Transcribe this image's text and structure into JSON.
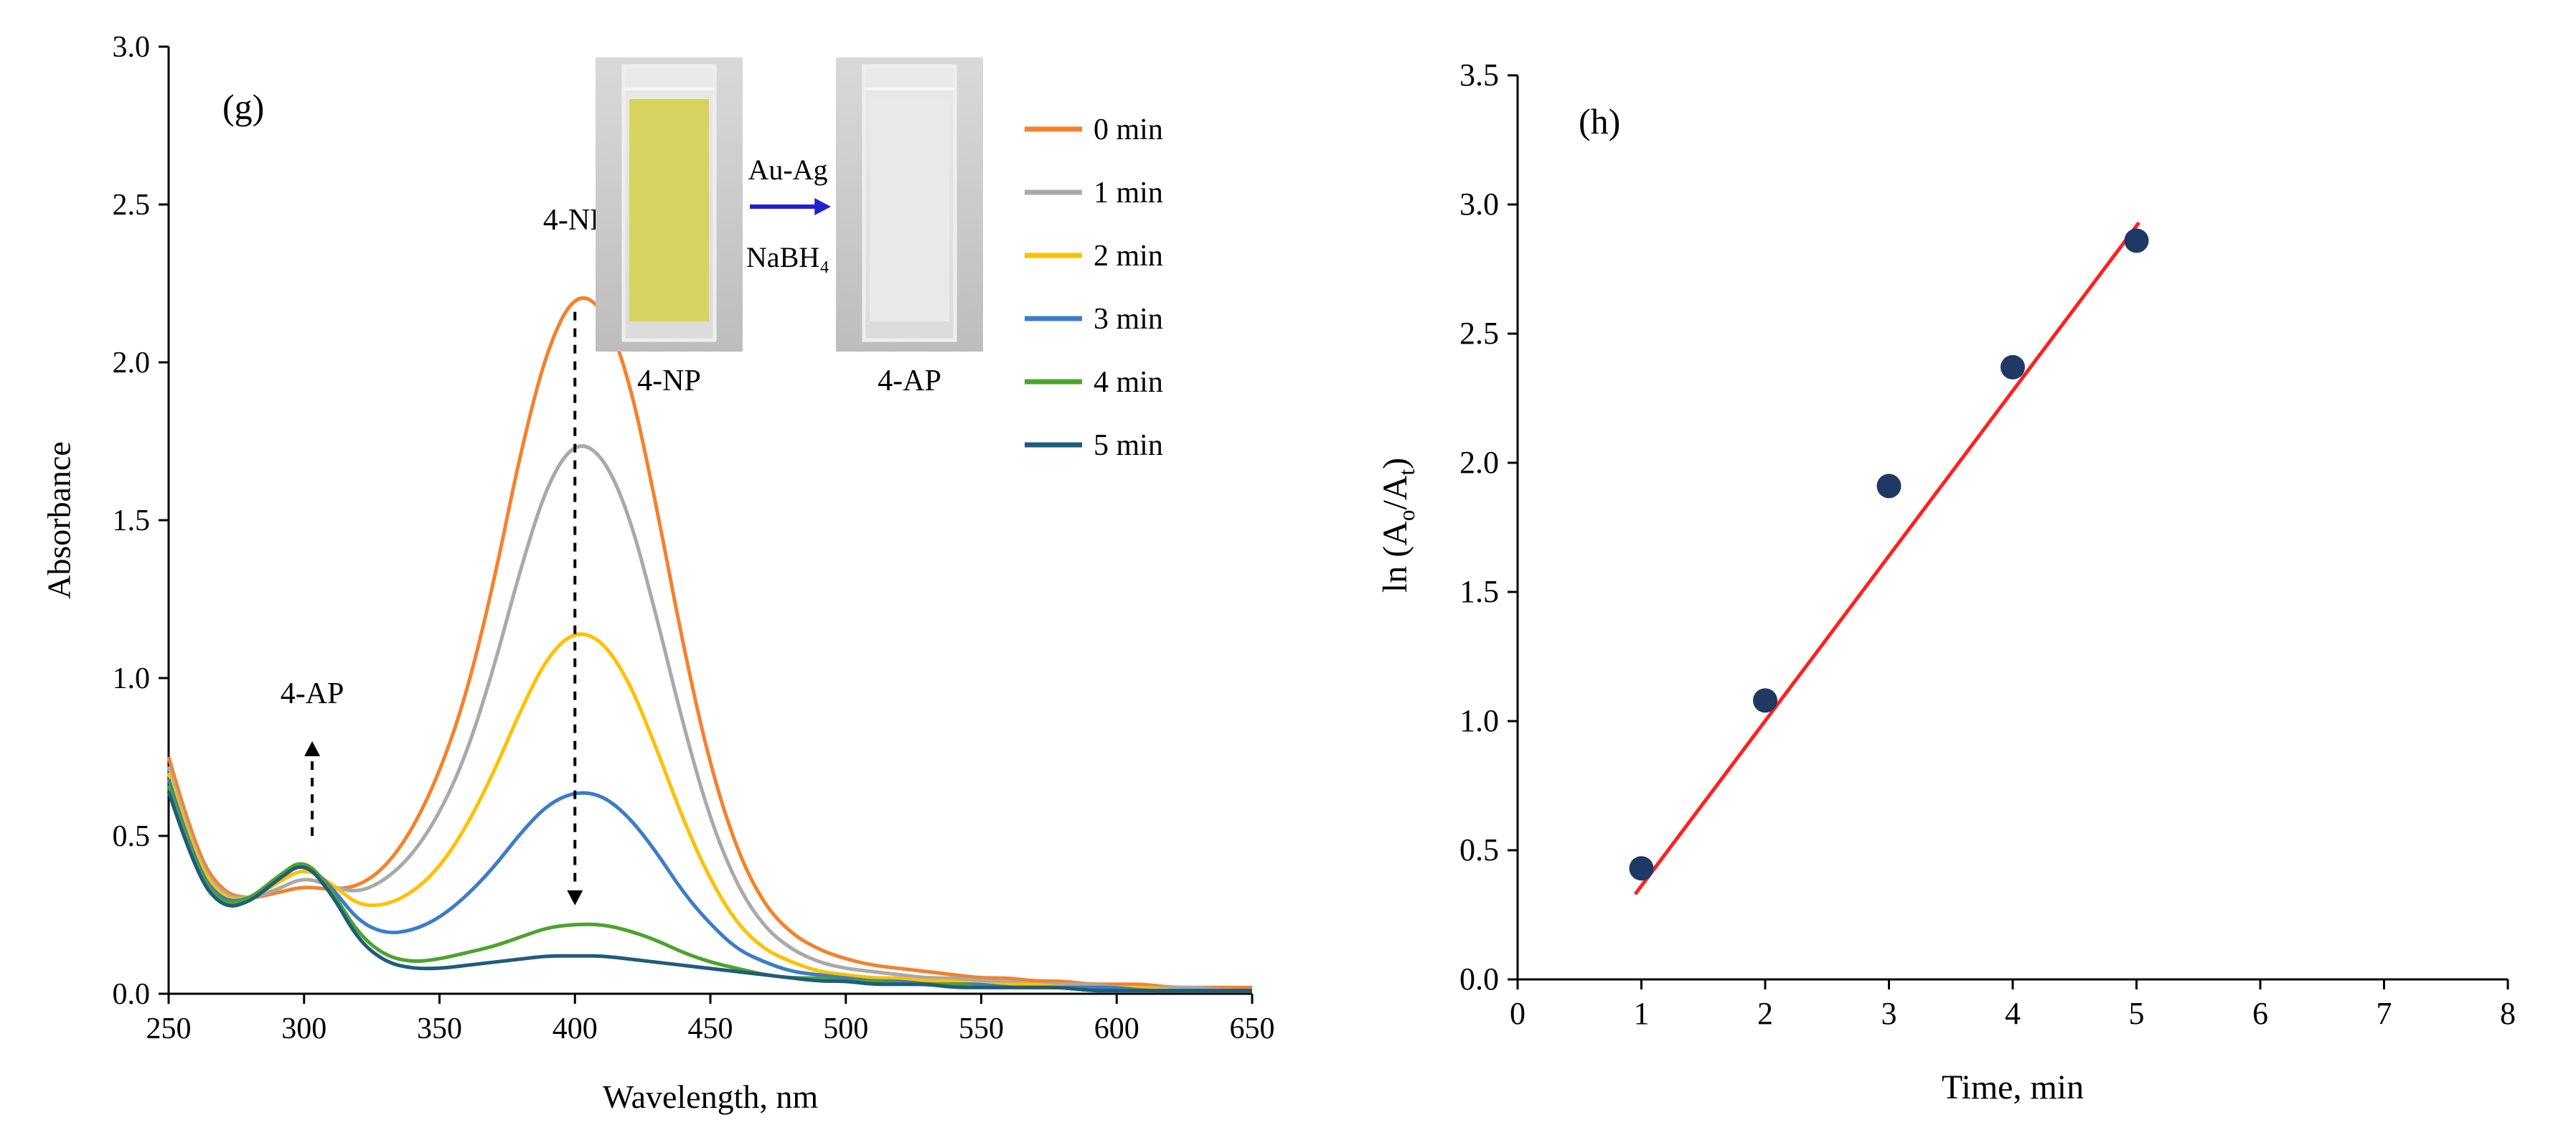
{
  "chart_data": [
    {
      "type": "line",
      "panel_label": "(g)",
      "xlabel": "Wavelength, nm",
      "ylabel": "Absorbance",
      "xlim": [
        250,
        650
      ],
      "ylim": [
        0,
        3.0
      ],
      "xtick_step": 50,
      "ytick_step": 0.5,
      "legend_position": "right-top",
      "x_wavelengths_nm": [
        250,
        260,
        270,
        280,
        290,
        300,
        310,
        320,
        330,
        340,
        350,
        360,
        370,
        380,
        390,
        400,
        410,
        420,
        430,
        440,
        450,
        460,
        470,
        480,
        490,
        500,
        510,
        520,
        530,
        540,
        550,
        560,
        570,
        580,
        590,
        600,
        610,
        620,
        630,
        640,
        650
      ],
      "series": [
        {
          "name": "0 min",
          "color": "#F4822C",
          "values": [
            0.75,
            0.45,
            0.32,
            0.3,
            0.32,
            0.34,
            0.33,
            0.34,
            0.4,
            0.52,
            0.7,
            0.95,
            1.3,
            1.72,
            2.05,
            2.22,
            2.18,
            1.95,
            1.55,
            1.1,
            0.72,
            0.45,
            0.28,
            0.19,
            0.14,
            0.11,
            0.09,
            0.08,
            0.07,
            0.06,
            0.05,
            0.05,
            0.04,
            0.04,
            0.03,
            0.03,
            0.03,
            0.02,
            0.02,
            0.02,
            0.02
          ]
        },
        {
          "name": "1 min",
          "color": "#A9A9A9",
          "values": [
            0.72,
            0.43,
            0.31,
            0.3,
            0.33,
            0.37,
            0.34,
            0.32,
            0.36,
            0.44,
            0.57,
            0.76,
            1.03,
            1.35,
            1.62,
            1.75,
            1.71,
            1.52,
            1.2,
            0.85,
            0.55,
            0.34,
            0.21,
            0.14,
            0.1,
            0.08,
            0.07,
            0.06,
            0.05,
            0.05,
            0.04,
            0.04,
            0.03,
            0.03,
            0.03,
            0.02,
            0.02,
            0.02,
            0.02,
            0.01,
            0.01
          ]
        },
        {
          "name": "2 min",
          "color": "#FFC000",
          "values": [
            0.7,
            0.42,
            0.3,
            0.3,
            0.35,
            0.4,
            0.35,
            0.28,
            0.28,
            0.32,
            0.4,
            0.53,
            0.7,
            0.9,
            1.07,
            1.15,
            1.12,
            0.99,
            0.78,
            0.55,
            0.36,
            0.22,
            0.14,
            0.1,
            0.07,
            0.06,
            0.05,
            0.05,
            0.04,
            0.04,
            0.03,
            0.03,
            0.03,
            0.02,
            0.02,
            0.02,
            0.02,
            0.01,
            0.01,
            0.01,
            0.01
          ]
        },
        {
          "name": "3 min",
          "color": "#3B7DC8",
          "values": [
            0.68,
            0.4,
            0.29,
            0.3,
            0.36,
            0.42,
            0.34,
            0.23,
            0.19,
            0.2,
            0.24,
            0.31,
            0.4,
            0.51,
            0.6,
            0.64,
            0.63,
            0.56,
            0.45,
            0.32,
            0.22,
            0.14,
            0.1,
            0.07,
            0.06,
            0.05,
            0.04,
            0.04,
            0.03,
            0.03,
            0.03,
            0.02,
            0.02,
            0.02,
            0.02,
            0.02,
            0.01,
            0.01,
            0.01,
            0.01,
            0.01
          ]
        },
        {
          "name": "4 min",
          "color": "#4CA32F",
          "values": [
            0.66,
            0.39,
            0.28,
            0.3,
            0.37,
            0.43,
            0.33,
            0.19,
            0.12,
            0.1,
            0.11,
            0.13,
            0.15,
            0.18,
            0.21,
            0.22,
            0.22,
            0.2,
            0.17,
            0.13,
            0.1,
            0.08,
            0.06,
            0.05,
            0.05,
            0.04,
            0.04,
            0.03,
            0.03,
            0.03,
            0.02,
            0.02,
            0.02,
            0.02,
            0.01,
            0.01,
            0.01,
            0.01,
            0.01,
            0.01,
            0.01
          ]
        },
        {
          "name": "5 min",
          "color": "#1F5C7C",
          "values": [
            0.64,
            0.38,
            0.27,
            0.29,
            0.36,
            0.42,
            0.32,
            0.17,
            0.1,
            0.08,
            0.08,
            0.09,
            0.1,
            0.11,
            0.12,
            0.12,
            0.12,
            0.11,
            0.1,
            0.09,
            0.08,
            0.07,
            0.06,
            0.05,
            0.04,
            0.04,
            0.03,
            0.03,
            0.03,
            0.02,
            0.02,
            0.02,
            0.02,
            0.02,
            0.01,
            0.01,
            0.01,
            0.01,
            0.01,
            0.01,
            0.01
          ]
        }
      ],
      "annotations": [
        {
          "text": "4-NP",
          "x": 400,
          "label_y": 2.42,
          "arrow_from_y": 2.16,
          "arrow_to_y": 0.28,
          "direction": "down"
        },
        {
          "text": "4-AP",
          "x": 303,
          "label_y": 0.92,
          "arrow_from_y": 0.5,
          "arrow_to_y": 0.8,
          "direction": "up"
        }
      ],
      "inset": {
        "left_cuvette_label": "4-NP",
        "right_cuvette_label": "4-AP",
        "arrow_label_top": "Au-Ag",
        "arrow_label_bottom": "NaBH₄",
        "arrow_color": "#2222CC",
        "left_liquid_color": "#D6D45E",
        "right_liquid_color": "#E9E9EC"
      }
    },
    {
      "type": "scatter",
      "panel_label": "(h)",
      "xlabel": "Time, min",
      "ylabel": "ln (Ao/At)",
      "ylabel_parts": [
        "ln (A",
        "o",
        "/A",
        "t",
        ")"
      ],
      "xlim": [
        0,
        8
      ],
      "ylim": [
        0,
        3.5
      ],
      "xtick_step": 1,
      "ytick_step": 0.5,
      "points": {
        "x": [
          1,
          2,
          3,
          4,
          5
        ],
        "y": [
          0.43,
          1.08,
          1.91,
          2.37,
          2.86
        ]
      },
      "marker_color": "#1F3864",
      "fit_line": {
        "x1": 0.95,
        "y1": 0.33,
        "x2": 5.02,
        "y2": 2.93,
        "color": "#FF2020"
      }
    }
  ]
}
